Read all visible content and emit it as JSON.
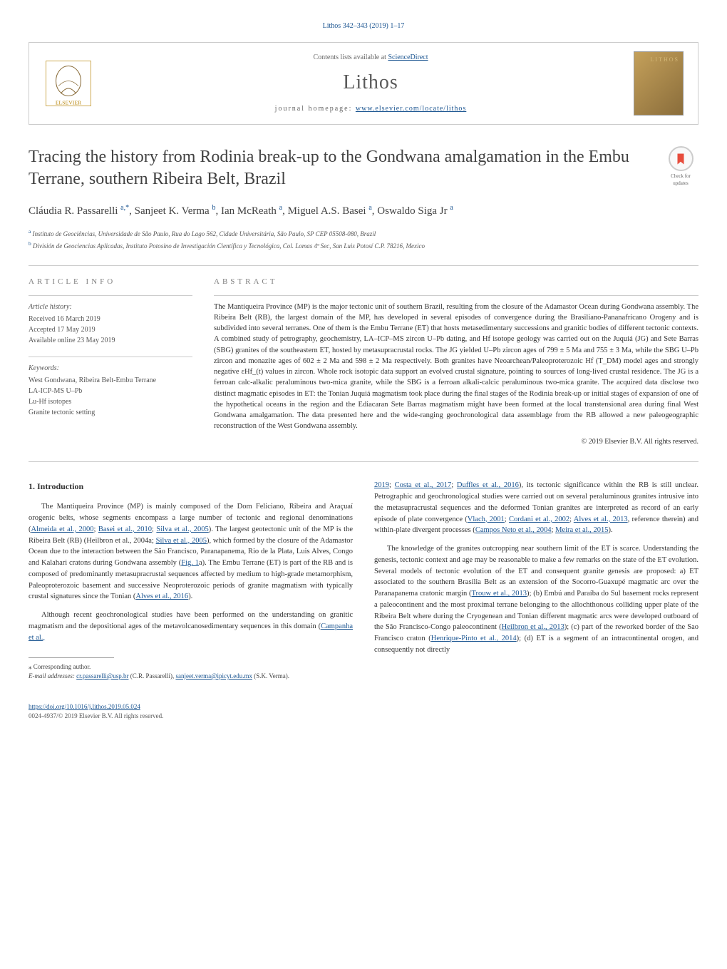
{
  "top_link": "Lithos 342–343 (2019) 1–17",
  "header": {
    "contents_text": "Contents lists available at ",
    "contents_link": "ScienceDirect",
    "journal_name": "Lithos",
    "homepage_text": "journal homepage: ",
    "homepage_link": "www.elsevier.com/locate/lithos",
    "publisher_name": "ELSEVIER",
    "cover_label": "LITHOS"
  },
  "check_updates_label": "Check for updates",
  "title": "Tracing the history from Rodinia break-up to the Gondwana amalgamation in the Embu Terrane, southern Ribeira Belt, Brazil",
  "authors_html": "Cláudia R. Passarelli <sup>a,*</sup>, Sanjeet K. Verma <sup>b</sup>, Ian McReath <sup>a</sup>, Miguel A.S. Basei <sup>a</sup>, Oswaldo Siga Jr <sup>a</sup>",
  "affiliations": [
    {
      "sup": "a",
      "text": "Instituto de Geociências, Universidade de São Paulo, Rua do Lago 562, Cidade Universitária, São Paulo, SP CEP 05508-080, Brazil"
    },
    {
      "sup": "b",
      "text": "División de Geociencias Aplicadas, Instituto Potosino de Investigación Científica y Tecnológica, Col. Lomas 4ª Sec, San Luis Potosí C.P. 78216, Mexico"
    }
  ],
  "article_info_heading": "ARTICLE INFO",
  "abstract_heading": "ABSTRACT",
  "history": {
    "title": "Article history:",
    "lines": [
      "Received 16 March 2019",
      "Accepted 17 May 2019",
      "Available online 23 May 2019"
    ]
  },
  "keywords": {
    "title": "Keywords:",
    "lines": [
      "West Gondwana, Ribeira Belt-Embu Terrane",
      "LA-ICP-MS U–Pb",
      "Lu-Hf isotopes",
      "Granite tectonic setting"
    ]
  },
  "abstract": "The Mantiqueira Province (MP) is the major tectonic unit of southern Brazil, resulting from the closure of the Adamastor Ocean during Gondwana assembly. The Ribeira Belt (RB), the largest domain of the MP, has developed in several episodes of convergence during the Brasiliano-Pananafricano Orogeny and is subdivided into several terranes. One of them is the Embu Terrane (ET) that hosts metasedimentary successions and granitic bodies of different tectonic contexts. A combined study of petrography, geochemistry, LA–ICP–MS zircon U–Pb dating, and Hf isotope geology was carried out on the Juquiá (JG) and Sete Barras (SBG) granites of the southeastern ET, hosted by metasupracrustal rocks. The JG yielded U–Pb zircon ages of 799 ± 5 Ma and 755 ± 3 Ma, while the SBG U–Pb zircon and monazite ages of 602 ± 2 Ma and 598 ± 2 Ma respectively. Both granites have Neoarchean/Paleoproterozoic Hf (T_DM) model ages and strongly negative εHf_(t) values in zircon. Whole rock isotopic data support an evolved crustal signature, pointing to sources of long-lived crustal residence. The JG is a ferroan calc-alkalic peraluminous two-mica granite, while the SBG is a ferroan alkali-calcic peraluminous two-mica granite. The acquired data disclose two distinct magmatic episodes in ET: the Tonian Juquiá magmatism took place during the final stages of the Rodinia break-up or initial stages of expansion of one of the hypothetical oceans in the region and the Ediacaran Sete Barras magmatism might have been formed at the local transtensional area during final West Gondwana amalgamation. The data presented here and the wide-ranging geochronological data assemblage from the RB allowed a new paleogeographic reconstruction of the West Gondwana assembly.",
  "copyright": "© 2019 Elsevier B.V. All rights reserved.",
  "intro_heading": "1. Introduction",
  "col1": {
    "p1_pre": "The Mantiqueira Province (MP) is mainly composed of the Dom Feliciano, Ribeira and Araçuaí orogenic belts, whose segments encompass a large number of tectonic and regional denominations (",
    "p1_ref1": "Almeida et al., 2000",
    "p1_mid1": "; ",
    "p1_ref2": "Basei et al., 2010",
    "p1_mid2": "; ",
    "p1_ref3": "Silva et al., 2005",
    "p1_mid3": "). The largest geotectonic unit of the MP is the Ribeira Belt (RB) (Heilbron et al., 2004a; ",
    "p1_ref4": "Silva et al., 2005",
    "p1_mid4": "), which formed by the closure of the Adamastor Ocean due to the interaction between the São Francisco, Paranapanema, Rio de la Plata, Luis Alves, Congo and Kalahari cratons during Gondwana assembly (",
    "p1_ref5": "Fig. 1",
    "p1_mid5": "a). The Embu Terrane (ET) is part of the RB and is composed of predominantly metasupracrustal sequences affected by medium to high-grade metamorphism, Paleoproterozoic basement and successive Neoproterozoic periods of granite magmatism with typically crustal signatures since the Tonian (",
    "p1_ref6": "Alves et al., 2016",
    "p1_end": ").",
    "p2_pre": "Although recent geochronological studies have been performed on the understanding on granitic magmatism and the depositional ages of the metavolcanosedimentary sequences in this domain (",
    "p2_ref1": "Campanha et al.,"
  },
  "col2": {
    "p1_ref1": "2019",
    "p1_mid1": "; ",
    "p1_ref2": "Costa et al., 2017",
    "p1_mid2": "; ",
    "p1_ref3": "Duffles et al., 2016",
    "p1_mid3": "), its tectonic significance within the RB is still unclear. Petrographic and geochronological studies were carried out on several peraluminous granites intrusive into the metasupracrustal sequences and the deformed Tonian granites are interpreted as record of an early episode of plate convergence (",
    "p1_ref4": "Vlach, 2001",
    "p1_mid4": "; ",
    "p1_ref5": "Cordani et al., 2002",
    "p1_mid5": "; ",
    "p1_ref6": "Alves et al., 2013",
    "p1_mid6": ", reference therein) and within-plate divergent processes (",
    "p1_ref7": "Campos Neto et al., 2004",
    "p1_mid7": "; ",
    "p1_ref8": "Meira et al., 2015",
    "p1_end": ").",
    "p2_pre": "The knowledge of the granites outcropping near southern limit of the ET is scarce. Understanding the genesis, tectonic context and age may be reasonable to make a few remarks on the state of the ET evolution. Several models of tectonic evolution of the ET and consequent granite genesis are proposed: a) ET associated to the southern Brasília Belt as an extension of the Socorro-Guaxupé magmatic arc over the Paranapanema cratonic margin (",
    "p2_ref1": "Trouw et al., 2013",
    "p2_mid1": "); (b) Embú and Paraíba do Sul basement rocks represent a paleocontinent and the most proximal terrane belonging to the allochthonous colliding upper plate of the Ribeira Belt where during the Cryogenean and Tonian different magmatic arcs were developed outboard of the São Francisco-Congo paleocontinent (",
    "p2_ref2": "Heilbron et al., 2013",
    "p2_mid2": "); (c) part of the reworked border of the Sao Francisco craton (",
    "p2_ref3": "Henrique-Pinto et al., 2014",
    "p2_mid3": "); (d) ET is a segment of an intracontinental orogen, and consequently not directly"
  },
  "footnotes": {
    "corr": "⁎ Corresponding author.",
    "email_label": "E-mail addresses: ",
    "email1": "cr.passarelli@usp.br",
    "email1_name": " (C.R. Passarelli), ",
    "email2": "sanjeet.verma@ipicyt.edu.mx",
    "email2_name": " (S.K. Verma)."
  },
  "footer": {
    "doi": "https://doi.org/10.1016/j.lithos.2019.05.024",
    "issn_line": "0024-4937/© 2019 Elsevier B.V. All rights reserved."
  }
}
